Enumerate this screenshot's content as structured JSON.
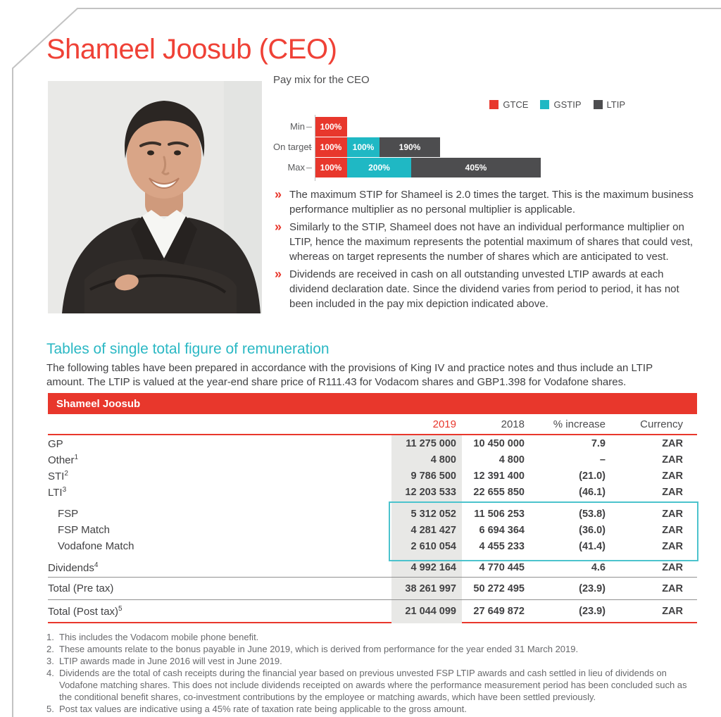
{
  "page": {
    "title": "Shameel Joosub (CEO)"
  },
  "pay_mix": {
    "heading": "Pay mix for the CEO",
    "bullets": [
      "The maximum STIP for Shameel is 2.0 times the target. This is the maximum business performance multiplier as no personal multiplier is applicable.",
      "Similarly to the STIP, Shameel does not have an individual performance multiplier on LTIP, hence the maximum represents the potential maximum of shares that could vest, whereas on target represents the number of shares which are anticipated to vest.",
      "Dividends are received in cash on all outstanding unvested LTIP awards at each dividend declaration date. Since the dividend varies from period to period, it has not been included in the pay mix depiction indicated above."
    ]
  },
  "chart_data": {
    "type": "bar",
    "orientation": "horizontal",
    "stacked": true,
    "title": "Pay mix for the CEO",
    "categories": [
      "Min",
      "On target",
      "Max"
    ],
    "series": [
      {
        "name": "GTCE",
        "color": "#e8372c",
        "values": [
          100,
          100,
          100
        ]
      },
      {
        "name": "GSTIP",
        "color": "#1fb8c4",
        "values": [
          0,
          100,
          200
        ]
      },
      {
        "name": "LTIP",
        "color": "#4d4d4f",
        "values": [
          0,
          190,
          405
        ]
      }
    ],
    "value_suffix": "%",
    "legend_position": "top-right",
    "xlim": [
      0,
      705
    ],
    "grid": false
  },
  "section": {
    "heading": "Tables of single total figure of remuneration",
    "intro": "The following tables have been prepared in accordance with the provisions of King IV and practice notes and thus include an LTIP amount. The LTIP is valued at the year-end share price of R111.43 for Vodacom shares and GBP1.398 for Vodafone shares."
  },
  "table": {
    "title": "Shameel Joosub",
    "columns": [
      "2019",
      "2018",
      "% increase",
      "Currency"
    ],
    "rows": [
      {
        "label": "GP",
        "sup": "",
        "v2019": "11 275 000",
        "v2018": "10 450 000",
        "inc": "7.9",
        "cur": "ZAR"
      },
      {
        "label": "Other",
        "sup": "1",
        "v2019": "4 800",
        "v2018": "4 800",
        "inc": "–",
        "cur": "ZAR"
      },
      {
        "label": "STI",
        "sup": "2",
        "v2019": "9 786 500",
        "v2018": "12 391 400",
        "inc": "(21.0)",
        "cur": "ZAR"
      },
      {
        "label": "LTI",
        "sup": "3",
        "v2019": "12 203 533",
        "v2018": "22 655 850",
        "inc": "(46.1)",
        "cur": "ZAR"
      }
    ],
    "boxed_rows": [
      {
        "label": "FSP",
        "sup": "",
        "v2019": "5 312 052",
        "v2018": "11 506 253",
        "inc": "(53.8)",
        "cur": "ZAR"
      },
      {
        "label": "FSP Match",
        "sup": "",
        "v2019": "4 281 427",
        "v2018": "6 694 364",
        "inc": "(36.0)",
        "cur": "ZAR"
      },
      {
        "label": "Vodafone Match",
        "sup": "",
        "v2019": "2 610 054",
        "v2018": "4 455 233",
        "inc": "(41.4)",
        "cur": "ZAR"
      }
    ],
    "dividends": {
      "label": "Dividends",
      "sup": "4",
      "v2019": "4 992 164",
      "v2018": "4 770 445",
      "inc": "4.6",
      "cur": "ZAR"
    },
    "total_pre": {
      "label": "Total (Pre tax)",
      "sup": "",
      "v2019": "38 261 997",
      "v2018": "50 272 495",
      "inc": "(23.9)",
      "cur": "ZAR"
    },
    "total_post": {
      "label": "Total (Post tax)",
      "sup": "5",
      "v2019": "21 044 099",
      "v2018": "27 649 872",
      "inc": "(23.9)",
      "cur": "ZAR"
    }
  },
  "footnotes": [
    {
      "n": "1.",
      "text": "This includes the Vodacom mobile phone benefit."
    },
    {
      "n": "2.",
      "text": "These amounts relate to the bonus payable in June 2019, which is derived from performance for the year ended 31 March 2019."
    },
    {
      "n": "3.",
      "text": "LTIP awards made in June 2016 will vest in June 2019."
    },
    {
      "n": "4.",
      "text": "Dividends are the total of cash receipts during the financial year based on previous unvested FSP LTIP awards and cash settled in lieu of dividends on Vodafone matching shares. This does not include dividends receipted on awards where the performance measurement period has been concluded such as the conditional benefit shares, co-investment contributions by the employee or matching awards, which have been settled previously."
    },
    {
      "n": "5.",
      "text": "Post tax values are indicative using a 45% rate of taxation rate being applicable to the gross amount."
    }
  ],
  "colors": {
    "brand_red": "#e8372c",
    "teal": "#1fb8c4",
    "dark_gray": "#4d4d4f",
    "highlight_band": "#e8e8e6"
  }
}
